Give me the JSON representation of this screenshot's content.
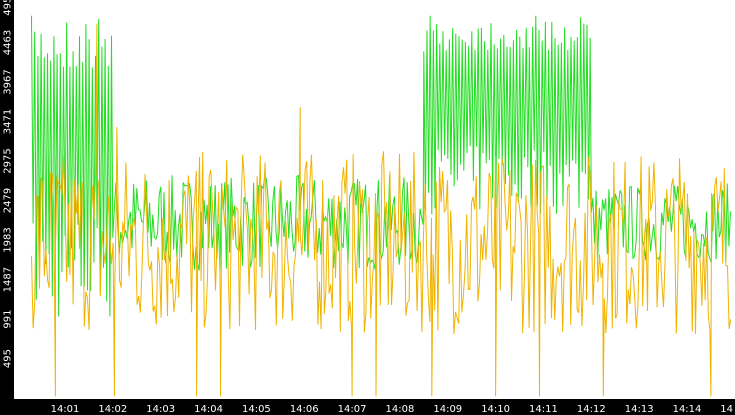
{
  "chart_data": {
    "type": "line",
    "title": "",
    "xlabel": "",
    "ylabel": "",
    "ylim": [
      0,
      4959
    ],
    "xlim_minutes": [
      "14:00:18",
      "14:14:55"
    ],
    "yticks": [
      "495",
      "991",
      "1487",
      "1983",
      "2479",
      "2975",
      "3471",
      "3967",
      "4463",
      "4959"
    ],
    "ytick_values": [
      495,
      991,
      1487,
      1983,
      2479,
      2975,
      3471,
      3967,
      4463,
      4959
    ],
    "xticks": [
      "14:01",
      "14:02",
      "14:03",
      "14:04",
      "14:05",
      "14:06",
      "14:07",
      "14:08",
      "14:09",
      "14:10",
      "14:11",
      "14:12",
      "14:13",
      "14:14",
      "14"
    ],
    "grid": false,
    "legend": "none",
    "background": "#ffffff",
    "axis_band_color": "#000000",
    "series": [
      {
        "color": "#22dd22",
        "segments": [
          {
            "from": "14:00:18",
            "to": "14:02:00",
            "low": 950,
            "high": 4800,
            "alternating": true
          },
          {
            "from": "14:02:00",
            "to": "14:08:30",
            "low": 1600,
            "high": 2800,
            "alternating": false
          },
          {
            "from": "14:08:30",
            "to": "14:12:00",
            "low": 2300,
            "high": 4800,
            "alternating": true
          },
          {
            "from": "14:12:00",
            "to": "14:14:55",
            "low": 1700,
            "high": 2700,
            "alternating": false
          }
        ]
      },
      {
        "color": "#f0b400",
        "segments": [
          {
            "from": "14:00:18",
            "to": "14:14:55",
            "low": 800,
            "high": 3100,
            "alternating": false
          }
        ],
        "spikes": [
          {
            "time": "14:01:40",
            "value": 4700
          },
          {
            "time": "14:02:05",
            "value": 3400
          },
          {
            "time": "14:05:55",
            "value": 3650
          },
          {
            "time": "14:00:48",
            "value": 20
          },
          {
            "time": "14:02:02",
            "value": 20
          },
          {
            "time": "14:03:45",
            "value": 20
          },
          {
            "time": "14:04:15",
            "value": 20
          },
          {
            "time": "14:07:00",
            "value": 20
          },
          {
            "time": "14:07:30",
            "value": 20
          },
          {
            "time": "14:08:40",
            "value": 20
          },
          {
            "time": "14:10:00",
            "value": 20
          },
          {
            "time": "14:10:55",
            "value": 20
          },
          {
            "time": "14:12:15",
            "value": 20
          },
          {
            "time": "14:14:30",
            "value": 20
          }
        ]
      }
    ]
  }
}
